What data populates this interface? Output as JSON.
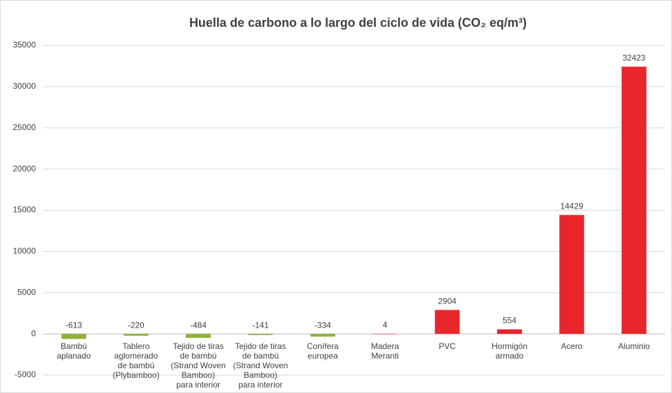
{
  "chart_data": {
    "type": "bar",
    "title": "Huella de carbono a lo largo del ciclo de vida (CO₂ eq/m³)",
    "categories": [
      [
        "Bambú",
        "aplanado"
      ],
      [
        "Tablero",
        "aglomerado",
        "de bambú",
        "(Plybamboo)"
      ],
      [
        "Tejido de tiras",
        "de bambú",
        "(Strand Woven",
        "Bamboo)",
        "para interior"
      ],
      [
        "Tejido de tiras",
        "de bambú",
        "(Strand Woven",
        "Bamboo)",
        "para interior"
      ],
      [
        "Conífera",
        "europea"
      ],
      [
        "Madera",
        "Meranti"
      ],
      [
        "PVC"
      ],
      [
        "Hormigón",
        "armado"
      ],
      [
        "Acero"
      ],
      [
        "Aluminio"
      ]
    ],
    "values": [
      -613,
      -220,
      -484,
      -141,
      -334,
      4,
      2904,
      554,
      14429,
      32423
    ],
    "colors": [
      "#8db33a",
      "#8db33a",
      "#8db33a",
      "#8db33a",
      "#8db33a",
      "#e8262b",
      "#e8262b",
      "#e8262b",
      "#e8262b",
      "#e8262b"
    ],
    "ylim": [
      -5000,
      35000
    ],
    "yticks": [
      -5000,
      0,
      5000,
      10000,
      15000,
      20000,
      25000,
      30000,
      35000
    ],
    "grid": true
  }
}
